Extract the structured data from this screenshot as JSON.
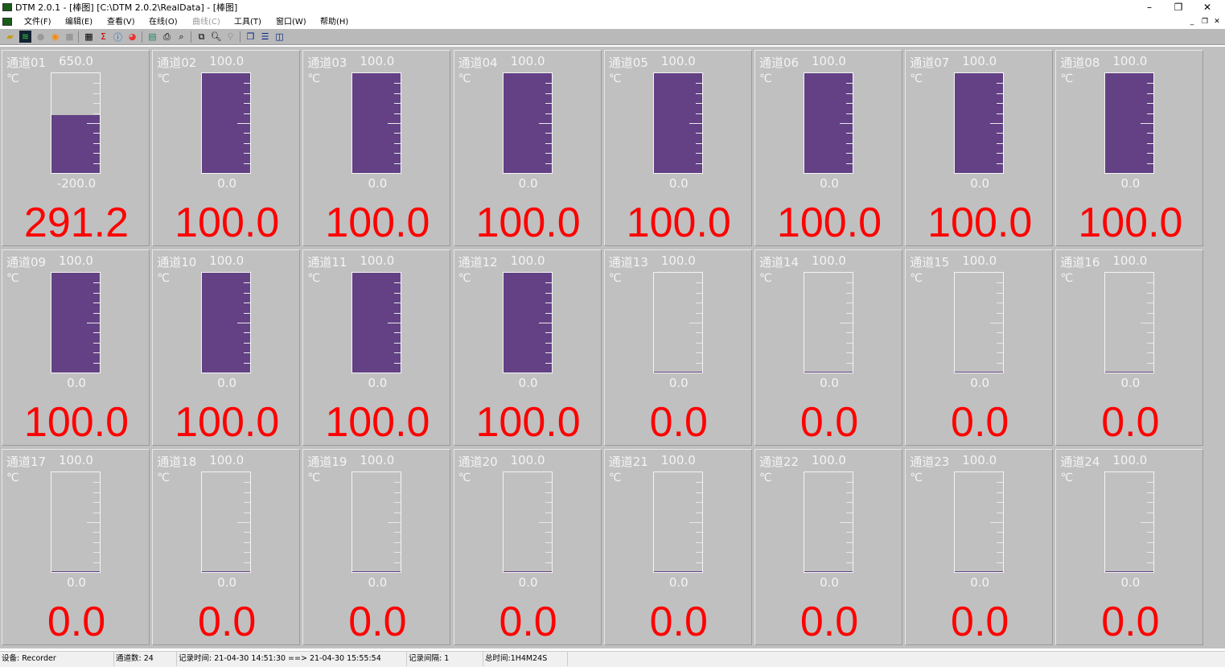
{
  "titlebar": {
    "title": "DTM 2.0.1 - [棒图] [C:\\DTM 2.0.2\\RealData] - [棒图]",
    "minimize": "–",
    "restore": "❐",
    "close": "✕"
  },
  "menubar": {
    "items": [
      {
        "label": "文件(F)",
        "enabled": true
      },
      {
        "label": "编辑(E)",
        "enabled": true
      },
      {
        "label": "查看(V)",
        "enabled": true
      },
      {
        "label": "在线(O)",
        "enabled": true
      },
      {
        "label": "曲线(C)",
        "enabled": false
      },
      {
        "label": "工具(T)",
        "enabled": true
      },
      {
        "label": "窗口(W)",
        "enabled": true
      },
      {
        "label": "帮助(H)",
        "enabled": true
      }
    ],
    "mdi": {
      "minimize": "_",
      "restore": "❐",
      "close": "✕"
    }
  },
  "toolbar": {
    "icons": [
      "open-folder-icon",
      "waveform-icon",
      "record-disabled-icon",
      "stop-icon",
      "square-disabled-icon",
      "grid-icon",
      "sigma-icon",
      "info-icon",
      "color-icon",
      "export-excel-icon",
      "print-icon",
      "print-preview-icon",
      "copy-icon",
      "zoom-icon",
      "zoom-disabled-icon",
      "cascade-icon",
      "tile-horizontal-icon",
      "tile-vertical-icon"
    ]
  },
  "colors": {
    "bar_fill": "#634184",
    "value_text": "#ff0000",
    "panel_bg": "#c0c0c0"
  },
  "channels": [
    {
      "name": "通道01",
      "max": "650.0",
      "min": "-200.0",
      "unit": "℃",
      "value": "291.2",
      "fill": 0.578
    },
    {
      "name": "通道02",
      "max": "100.0",
      "min": "0.0",
      "unit": "℃",
      "value": "100.0",
      "fill": 1
    },
    {
      "name": "通道03",
      "max": "100.0",
      "min": "0.0",
      "unit": "℃",
      "value": "100.0",
      "fill": 1
    },
    {
      "name": "通道04",
      "max": "100.0",
      "min": "0.0",
      "unit": "℃",
      "value": "100.0",
      "fill": 1
    },
    {
      "name": "通道05",
      "max": "100.0",
      "min": "0.0",
      "unit": "℃",
      "value": "100.0",
      "fill": 1
    },
    {
      "name": "通道06",
      "max": "100.0",
      "min": "0.0",
      "unit": "℃",
      "value": "100.0",
      "fill": 1
    },
    {
      "name": "通道07",
      "max": "100.0",
      "min": "0.0",
      "unit": "℃",
      "value": "100.0",
      "fill": 1
    },
    {
      "name": "通道08",
      "max": "100.0",
      "min": "0.0",
      "unit": "℃",
      "value": "100.0",
      "fill": 1
    },
    {
      "name": "通道09",
      "max": "100.0",
      "min": "0.0",
      "unit": "℃",
      "value": "100.0",
      "fill": 1
    },
    {
      "name": "通道10",
      "max": "100.0",
      "min": "0.0",
      "unit": "℃",
      "value": "100.0",
      "fill": 1
    },
    {
      "name": "通道11",
      "max": "100.0",
      "min": "0.0",
      "unit": "℃",
      "value": "100.0",
      "fill": 1
    },
    {
      "name": "通道12",
      "max": "100.0",
      "min": "0.0",
      "unit": "℃",
      "value": "100.0",
      "fill": 1
    },
    {
      "name": "通道13",
      "max": "100.0",
      "min": "0.0",
      "unit": "℃",
      "value": "0.0",
      "fill": 0
    },
    {
      "name": "通道14",
      "max": "100.0",
      "min": "0.0",
      "unit": "℃",
      "value": "0.0",
      "fill": 0
    },
    {
      "name": "通道15",
      "max": "100.0",
      "min": "0.0",
      "unit": "℃",
      "value": "0.0",
      "fill": 0
    },
    {
      "name": "通道16",
      "max": "100.0",
      "min": "0.0",
      "unit": "℃",
      "value": "0.0",
      "fill": 0
    },
    {
      "name": "通道17",
      "max": "100.0",
      "min": "0.0",
      "unit": "℃",
      "value": "0.0",
      "fill": 0
    },
    {
      "name": "通道18",
      "max": "100.0",
      "min": "0.0",
      "unit": "℃",
      "value": "0.0",
      "fill": 0
    },
    {
      "name": "通道19",
      "max": "100.0",
      "min": "0.0",
      "unit": "℃",
      "value": "0.0",
      "fill": 0
    },
    {
      "name": "通道20",
      "max": "100.0",
      "min": "0.0",
      "unit": "℃",
      "value": "0.0",
      "fill": 0
    },
    {
      "name": "通道21",
      "max": "100.0",
      "min": "0.0",
      "unit": "℃",
      "value": "0.0",
      "fill": 0
    },
    {
      "name": "通道22",
      "max": "100.0",
      "min": "0.0",
      "unit": "℃",
      "value": "0.0",
      "fill": 0
    },
    {
      "name": "通道23",
      "max": "100.0",
      "min": "0.0",
      "unit": "℃",
      "value": "0.0",
      "fill": 0
    },
    {
      "name": "通道24",
      "max": "100.0",
      "min": "0.0",
      "unit": "℃",
      "value": "0.0",
      "fill": 0
    }
  ],
  "statusbar": {
    "device": "设备: Recorder",
    "channel_count": "通道数: 24",
    "record_time": "记录时间: 21-04-30 14:51:30 ==> 21-04-30 15:55:54",
    "interval": "记录间隔: 1",
    "total_time": "总时间:1H4M24S"
  }
}
